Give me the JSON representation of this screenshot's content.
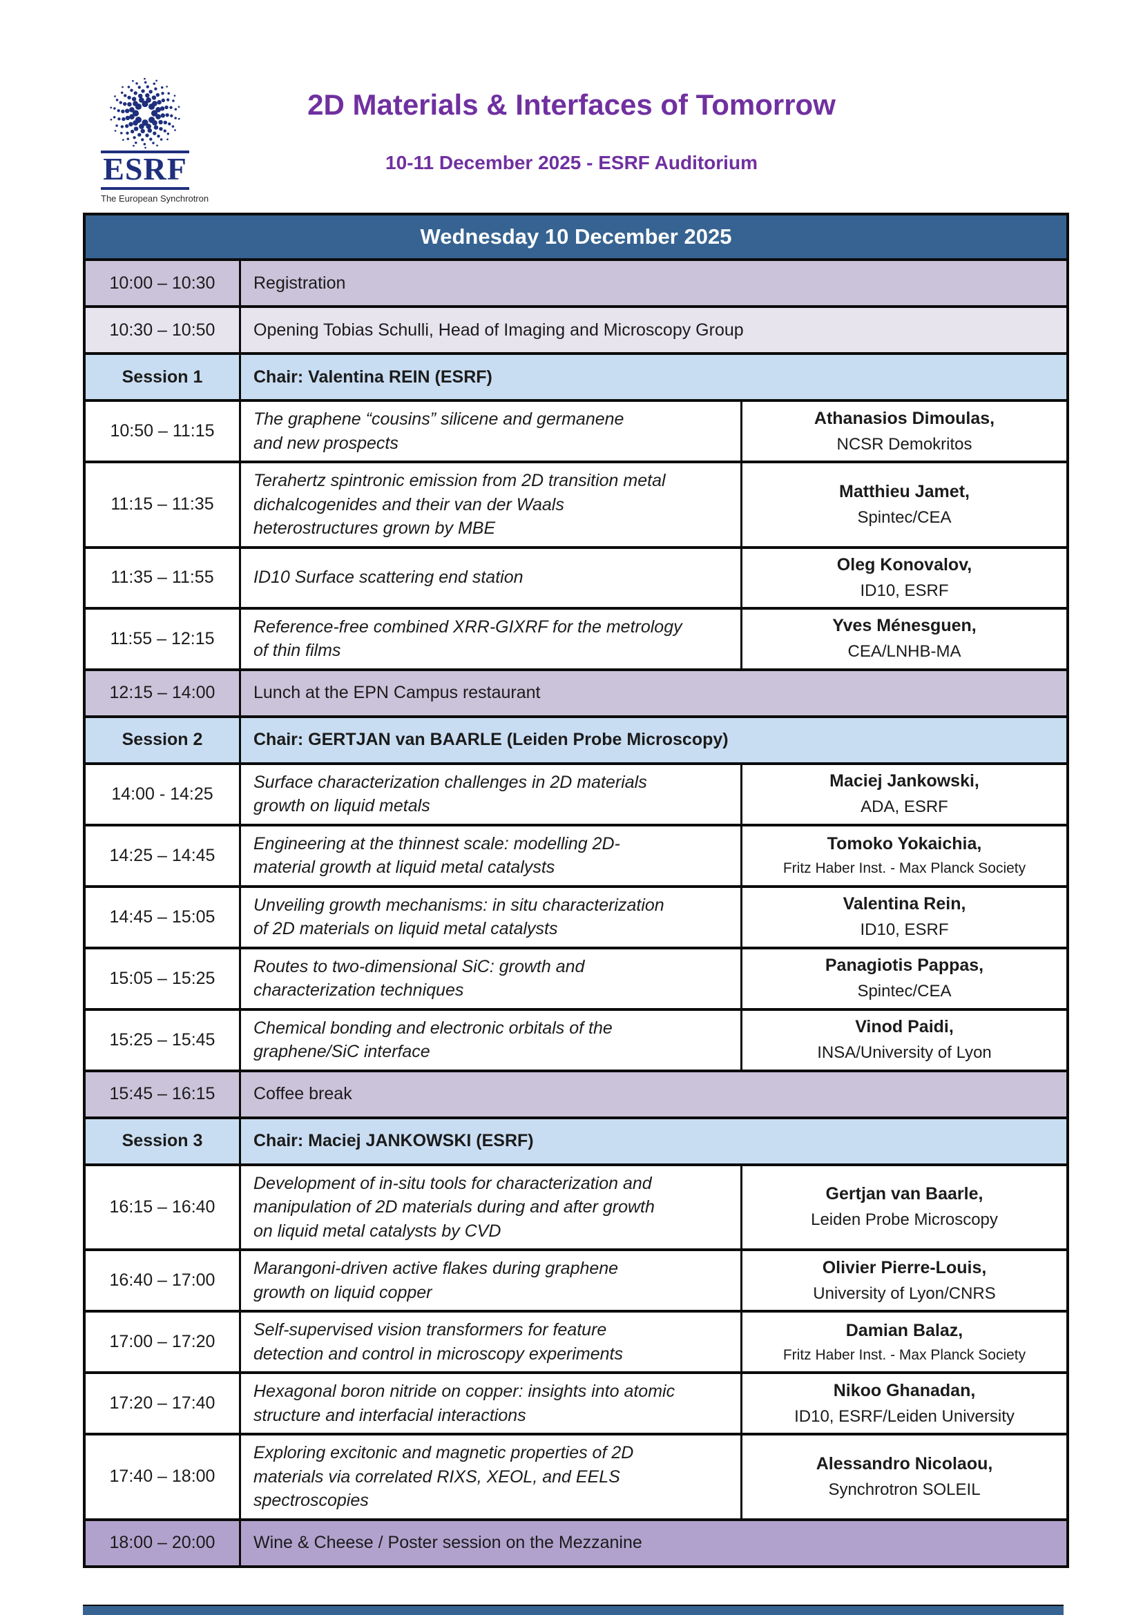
{
  "page": {
    "logo": {
      "name": "ESRF",
      "tagline": "The European Synchrotron"
    },
    "title": "2D Materials & Interfaces of Tomorrow",
    "subtitle": "10-11 December 2025 - ESRF Auditorium"
  },
  "colors": {
    "banner_blue": "#366391",
    "session_blue": "#c9ddf2",
    "break_lavender": "#cbc3da",
    "break_lavender_light": "#e8e4ee",
    "event_purple": "#b1a2cd",
    "title_purple": "#7030a0",
    "logo_navy": "#1e2f7d",
    "border_black": "#0b0b0b"
  },
  "schedule": {
    "day_header": "Wednesday 10 December 2025",
    "rows": [
      {
        "type": "simple",
        "time": "10:00 – 10:30",
        "text": "Registration",
        "variant": "lavender"
      },
      {
        "type": "simple",
        "time": "10:30 – 10:50",
        "text": "Opening Tobias Schulli, Head of Imaging and Microscopy Group",
        "variant": "lavender_light"
      },
      {
        "type": "session",
        "label": "Session 1",
        "chair": "Chair: Valentina REIN (ESRF)"
      },
      {
        "type": "talk",
        "time": "10:50 – 11:15",
        "title": "The graphene “cousins” silicene and germanene\nand new prospects",
        "speaker": "Athanasios Dimoulas,",
        "affiliation": "NCSR Demokritos"
      },
      {
        "type": "talk",
        "time": "11:15 – 11:35",
        "title": "Terahertz spintronic emission from 2D transition metal\ndichalcogenides and their van der Waals\nheterostructures grown by MBE",
        "speaker": "Matthieu Jamet,",
        "affiliation": "Spintec/CEA"
      },
      {
        "type": "talk",
        "time": "11:35 – 11:55",
        "title": "ID10 Surface scattering end station",
        "speaker": "Oleg Konovalov,",
        "affiliation": "ID10, ESRF"
      },
      {
        "type": "talk",
        "time": "11:55 – 12:15",
        "title": "Reference-free combined XRR-GIXRF for the metrology\nof thin films",
        "speaker": "Yves Ménesguen,",
        "affiliation": "CEA/LNHB-MA"
      },
      {
        "type": "simple",
        "time": "12:15 – 14:00",
        "text": "Lunch at the EPN Campus restaurant",
        "variant": "lavender"
      },
      {
        "type": "session",
        "label": "Session 2",
        "chair": "Chair: GERTJAN van BAARLE (Leiden Probe Microscopy)"
      },
      {
        "type": "talk",
        "time": "14:00 - 14:25",
        "title": "Surface characterization challenges in 2D materials\ngrowth on liquid metals",
        "speaker": "Maciej Jankowski,",
        "affiliation": "ADA, ESRF"
      },
      {
        "type": "talk",
        "time": "14:25 – 14:45",
        "title": "Engineering at the thinnest scale: modelling 2D-\nmaterial growth at liquid metal catalysts",
        "speaker": "Tomoko Yokaichia,",
        "affiliation": "Fritz Haber Inst. - Max Planck Society"
      },
      {
        "type": "talk",
        "time": "14:45 – 15:05",
        "title": "Unveiling growth mechanisms: in situ characterization\nof 2D materials on liquid metal catalysts",
        "speaker": "Valentina Rein,",
        "affiliation": "ID10, ESRF"
      },
      {
        "type": "talk",
        "time": "15:05 – 15:25",
        "title": "Routes to two-dimensional SiC: growth and\ncharacterization techniques",
        "speaker": "Panagiotis Pappas,",
        "affiliation": "Spintec/CEA"
      },
      {
        "type": "talk",
        "time": "15:25 – 15:45",
        "title": "Chemical bonding and electronic orbitals of the\ngraphene/SiC interface",
        "speaker": "Vinod Paidi,",
        "affiliation": "INSA/University of Lyon"
      },
      {
        "type": "simple",
        "time": "15:45 – 16:15",
        "text": "Coffee break",
        "variant": "lavender"
      },
      {
        "type": "session",
        "label": "Session 3",
        "chair": "Chair: Maciej JANKOWSKI (ESRF)"
      },
      {
        "type": "talk",
        "time": "16:15 – 16:40",
        "title": "Development of in-situ tools for characterization and\nmanipulation of 2D materials during and after growth\non liquid metal catalysts by CVD",
        "speaker": "Gertjan van Baarle,",
        "affiliation": "Leiden Probe Microscopy"
      },
      {
        "type": "talk",
        "time": "16:40 – 17:00",
        "title": "Marangoni-driven active flakes during graphene\ngrowth on liquid copper",
        "speaker": "Olivier Pierre-Louis,",
        "affiliation": "University of Lyon/CNRS"
      },
      {
        "type": "talk",
        "time": "17:00 – 17:20",
        "title": "Self-supervised vision transformers for feature\ndetection and control in microscopy experiments",
        "speaker": "Damian Balaz,",
        "affiliation": "Fritz Haber Inst. - Max Planck Society"
      },
      {
        "type": "talk",
        "time": "17:20 – 17:40",
        "title": "Hexagonal boron nitride on copper: insights into atomic\nstructure and interfacial interactions",
        "speaker": "Nikoo Ghanadan,",
        "affiliation": "ID10, ESRF/Leiden University"
      },
      {
        "type": "talk",
        "time": "17:40 – 18:00",
        "title": "Exploring excitonic and magnetic properties of 2D\nmaterials via correlated RIXS, XEOL, and EELS\nspectroscopies",
        "speaker": "Alessandro Nicolaou,",
        "affiliation": "Synchrotron SOLEIL"
      },
      {
        "type": "simple",
        "time": "18:00 – 20:00",
        "text": "Wine & Cheese / Poster session on the Mezzanine",
        "variant": "purple"
      }
    ]
  }
}
